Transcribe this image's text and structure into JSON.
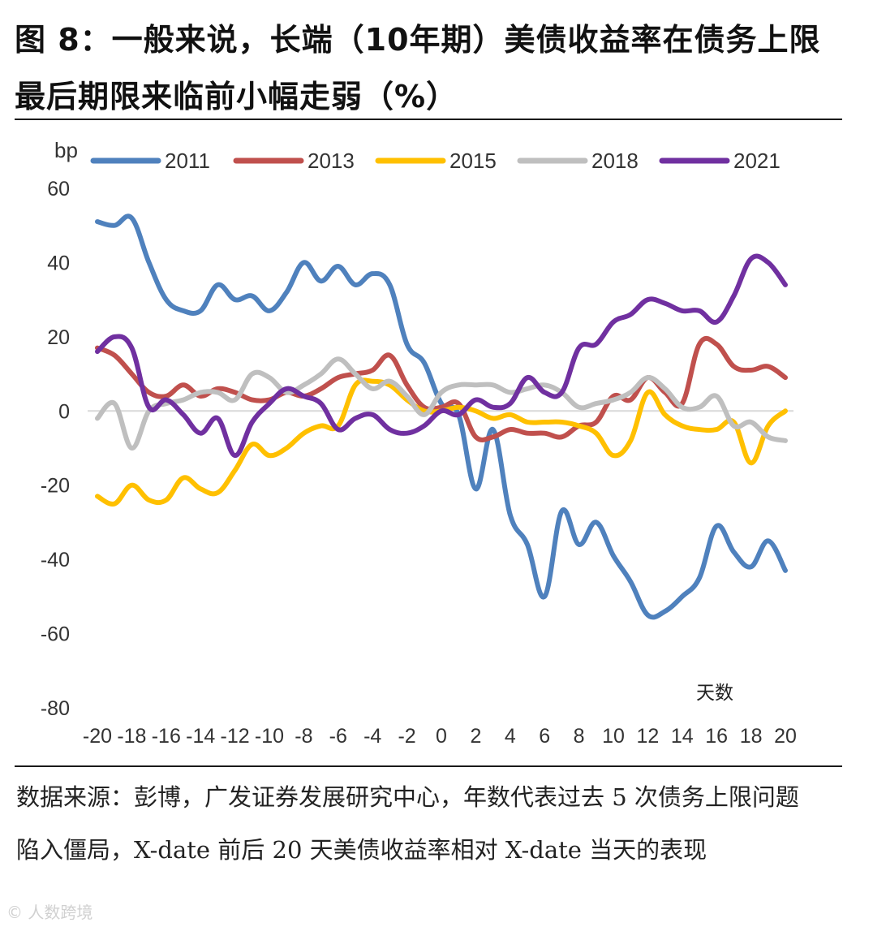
{
  "title": "图 8：一般来说，长端（10年期）美债收益率在债务上限最后期限来临前小幅走弱（%）",
  "source_note": "数据来源：彭博，广发证券发展研究中心，年数代表过去 5 次债务上限问题陷入僵局，X-date 前后 20 天美债收益率相对 X-date 当天的表现",
  "watermark": "© 人数跨境",
  "chart_data": {
    "type": "line",
    "title": "",
    "ylabel": "bp",
    "xlabel": "天数",
    "ylim": [
      -80,
      60
    ],
    "yticks": [
      60,
      40,
      20,
      0,
      -20,
      -40,
      -60,
      -80
    ],
    "xlim": [
      -20,
      20
    ],
    "xticks": [
      -20,
      -18,
      -16,
      -14,
      -12,
      -10,
      -8,
      -6,
      -4,
      -2,
      0,
      2,
      4,
      6,
      8,
      10,
      12,
      14,
      16,
      18,
      20
    ],
    "legend_position": "top",
    "x": [
      -20,
      -19,
      -18,
      -17,
      -16,
      -15,
      -14,
      -13,
      -12,
      -11,
      -10,
      -9,
      -8,
      -7,
      -6,
      -5,
      -4,
      -3,
      -2,
      -1,
      0,
      1,
      2,
      3,
      4,
      5,
      6,
      7,
      8,
      9,
      10,
      11,
      12,
      13,
      14,
      15,
      16,
      17,
      18,
      19,
      20
    ],
    "series": [
      {
        "name": "2011",
        "color": "#4F81BD",
        "values": [
          51,
          50,
          52,
          40,
          30,
          27,
          27,
          34,
          30,
          31,
          27,
          32,
          40,
          35,
          39,
          34,
          37,
          34,
          18,
          13,
          2,
          -1,
          -21,
          -5,
          -28,
          -36,
          -50,
          -27,
          -36,
          -30,
          -39,
          -46,
          -55,
          -54,
          -50,
          -45,
          -31,
          -38,
          -42,
          -35,
          -43
        ]
      },
      {
        "name": "2013",
        "color": "#C0504D",
        "values": [
          17,
          15,
          10,
          5,
          4,
          7,
          4,
          6,
          5,
          3,
          3,
          5,
          4,
          6,
          9,
          10,
          11,
          15,
          7,
          1,
          1,
          2,
          -7,
          -7,
          -5,
          -6,
          -6,
          -7,
          -4,
          -3,
          4,
          3,
          9,
          5,
          2,
          18,
          18,
          12,
          11,
          12,
          9
        ]
      },
      {
        "name": "2015",
        "color": "#FFC000",
        "values": [
          -23,
          -25,
          -20,
          -24,
          -24,
          -18,
          -21,
          -22,
          -16,
          -9,
          -12,
          -10,
          -6,
          -4,
          -4,
          7,
          8,
          7,
          3,
          0,
          0,
          1,
          0,
          -2,
          -1,
          -3,
          -3,
          -3,
          -4,
          -6,
          -12,
          -8,
          5,
          -1,
          -4,
          -5,
          -5,
          -3,
          -14,
          -4,
          0
        ]
      },
      {
        "name": "2018",
        "color": "#BFBFBF",
        "values": [
          -2,
          2,
          -10,
          0,
          2,
          3,
          5,
          5,
          3,
          10,
          9,
          5,
          7,
          10,
          14,
          10,
          6,
          8,
          4,
          -1,
          5,
          7,
          7,
          7,
          5,
          6,
          7,
          5,
          1,
          2,
          3,
          5,
          9,
          6,
          1,
          1,
          4,
          -4,
          -3,
          -7,
          -8
        ]
      },
      {
        "name": "2021",
        "color": "#7030A0",
        "values": [
          16,
          20,
          17,
          1,
          3,
          -1,
          -6,
          -2,
          -12,
          -3,
          2,
          6,
          4,
          2,
          -5,
          -2,
          -1,
          -5,
          -6,
          -4,
          0,
          -1,
          3,
          1,
          2,
          9,
          5,
          5,
          17,
          18,
          24,
          26,
          30,
          29,
          27,
          27,
          24,
          31,
          41,
          40,
          34
        ]
      }
    ]
  }
}
